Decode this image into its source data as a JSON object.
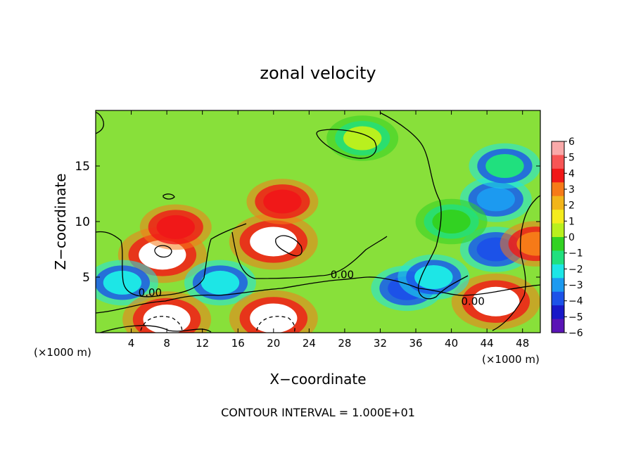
{
  "chart_data": {
    "type": "heatmap",
    "title": "zonal velocity",
    "xlabel": "X−coordinate",
    "ylabel": "Z−coordinate",
    "x_unit_left": "(×1000 m)",
    "x_unit_right": "(×1000 m)",
    "footer": "CONTOUR INTERVAL = 1.000E+01",
    "xlim": [
      0,
      50
    ],
    "ylim": [
      0,
      20
    ],
    "xticks": [
      4,
      8,
      12,
      16,
      20,
      24,
      28,
      32,
      36,
      40,
      44,
      48
    ],
    "yticks": [
      5,
      10,
      15
    ],
    "colorbar": {
      "min": -6,
      "max": 6,
      "ticks": [
        6,
        5,
        4,
        3,
        2,
        1,
        0,
        -1,
        -2,
        -3,
        -4,
        -5,
        -6
      ],
      "colors": [
        "#f9a9a9",
        "#f75555",
        "#f01818",
        "#f67a18",
        "#f2b51a",
        "#f4ec1e",
        "#b9f01e",
        "#32d222",
        "#20e07e",
        "#1de6e6",
        "#1c9af0",
        "#1c52e8",
        "#1818c8",
        "#5a14b6"
      ]
    },
    "contour_labels": [
      {
        "text": "0.00",
        "x": 4.8,
        "z": 3.3
      },
      {
        "text": "0.00",
        "x": 26.4,
        "z": 4.9
      },
      {
        "text": "0.00",
        "x": 41.1,
        "z": 2.5
      }
    ],
    "features": [
      {
        "x": 7.5,
        "z": 7.0,
        "value": 7
      },
      {
        "x": 20.0,
        "z": 8.2,
        "value": 7
      },
      {
        "x": 21.0,
        "z": 11.8,
        "value": 4
      },
      {
        "x": 9.0,
        "z": 9.5,
        "value": 4
      },
      {
        "x": 14.0,
        "z": 4.5,
        "value": -3
      },
      {
        "x": 3.0,
        "z": 4.5,
        "value": -3
      },
      {
        "x": 8.0,
        "z": 1.2,
        "value": 7
      },
      {
        "x": 20.0,
        "z": 1.3,
        "value": 7
      },
      {
        "x": 35.0,
        "z": 4.0,
        "value": -5
      },
      {
        "x": 45.0,
        "z": 2.8,
        "value": 7
      },
      {
        "x": 45.0,
        "z": 7.5,
        "value": -5
      },
      {
        "x": 45.0,
        "z": 12.0,
        "value": -4
      },
      {
        "x": 46.0,
        "z": 15.0,
        "value": -2
      },
      {
        "x": 30.0,
        "z": 17.5,
        "value": 0
      },
      {
        "x": 40.0,
        "z": 10.0,
        "value": -1
      },
      {
        "x": 38.0,
        "z": 5.0,
        "value": -3
      },
      {
        "x": 49.5,
        "z": 8.0,
        "value": 3
      }
    ]
  }
}
